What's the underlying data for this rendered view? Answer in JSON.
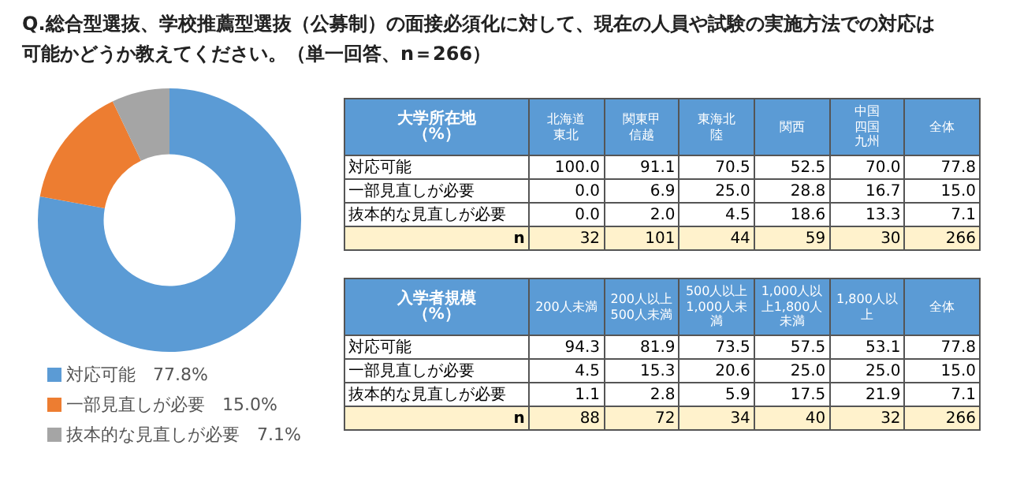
{
  "chart_data": [
    {
      "type": "donut",
      "title": "Q.総合型選抜、学校推薦型選抜（公募制）の面接必須化に対して、現在の人員や試験の実施方法での対応は可能かどうか教えてください。（単一回答、n＝266）",
      "categories": [
        "対応可能",
        "一部見直しが必要",
        "抜本的な見直しが必要"
      ],
      "values": [
        77.8,
        15.0,
        7.1
      ],
      "value_labels": [
        "77.8%",
        "15.0%",
        "7.1%"
      ],
      "colors": [
        "#5b9bd5",
        "#ed7d31",
        "#a5a5a5"
      ],
      "legend": "bottom"
    },
    {
      "type": "heatmap",
      "title": "大学所在地（%）",
      "categories": [
        "北海道東北",
        "関東甲信越",
        "東海北陸",
        "関西",
        "中国四国九州",
        "全体"
      ],
      "y_categories": [
        "対応可能",
        "一部見直しが必要",
        "抜本的な見直しが必要",
        "n"
      ],
      "cells": [
        [
          100.0,
          91.1,
          70.5,
          52.5,
          70.0,
          77.8
        ],
        [
          0.0,
          6.9,
          25.0,
          28.8,
          16.7,
          15.0
        ],
        [
          0.0,
          2.0,
          4.5,
          18.6,
          13.3,
          7.1
        ],
        [
          32,
          101,
          44,
          59,
          30,
          266
        ]
      ],
      "cell_labels": [
        [
          "100.0",
          "91.1",
          "70.5",
          "52.5",
          "70.0",
          "77.8"
        ],
        [
          "0.0",
          "6.9",
          "25.0",
          "28.8",
          "16.7",
          "15.0"
        ],
        [
          "0.0",
          "2.0",
          "4.5",
          "18.6",
          "13.3",
          "7.1"
        ],
        [
          "32",
          "101",
          "44",
          "59",
          "30",
          "266"
        ]
      ]
    },
    {
      "type": "heatmap",
      "title": "入学者規模（%）",
      "categories": [
        "200人未満",
        "200人以上500人未満",
        "500人以上1,000人未満",
        "1,000人以上1,800人未満",
        "1,800人以上",
        "全体"
      ],
      "y_categories": [
        "対応可能",
        "一部見直しが必要",
        "抜本的な見直しが必要",
        "n"
      ],
      "cells": [
        [
          94.3,
          81.9,
          73.5,
          57.5,
          53.1,
          77.8
        ],
        [
          4.5,
          15.3,
          20.6,
          25.0,
          25.0,
          15.0
        ],
        [
          1.1,
          2.8,
          5.9,
          17.5,
          21.9,
          7.1
        ],
        [
          88,
          72,
          34,
          40,
          32,
          266
        ]
      ],
      "cell_labels": [
        [
          "94.3",
          "81.9",
          "73.5",
          "57.5",
          "53.1",
          "77.8"
        ],
        [
          "4.5",
          "15.3",
          "20.6",
          "25.0",
          "25.0",
          "15.0"
        ],
        [
          "1.1",
          "2.8",
          "5.9",
          "17.5",
          "21.9",
          "7.1"
        ],
        [
          "88",
          "72",
          "34",
          "40",
          "32",
          "266"
        ]
      ]
    }
  ]
}
